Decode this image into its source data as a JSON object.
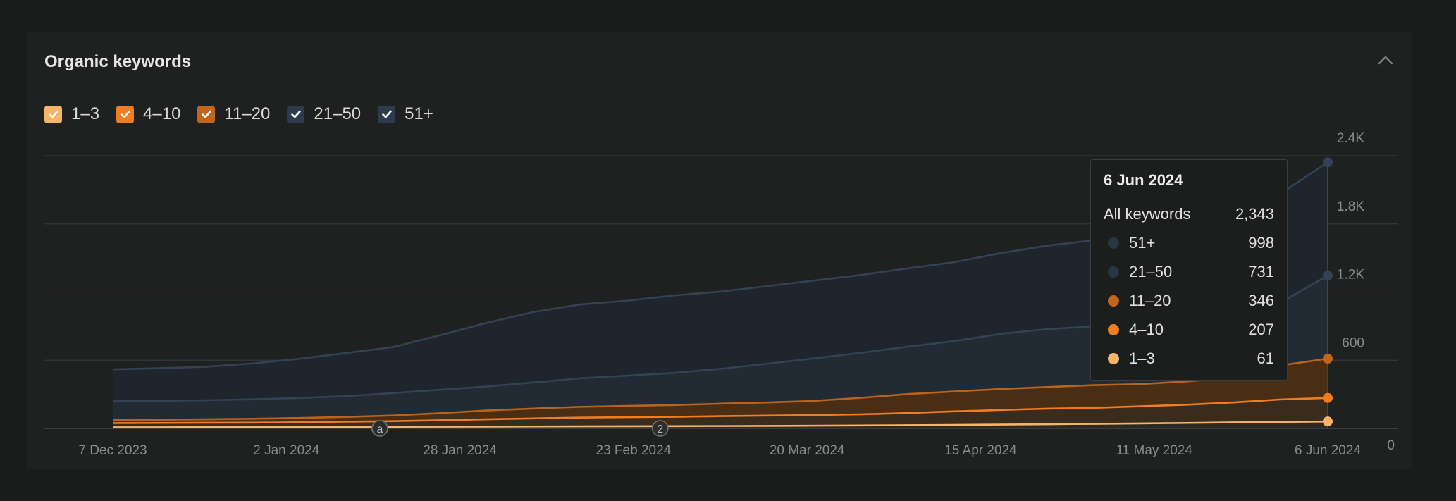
{
  "panel": {
    "title": "Organic keywords"
  },
  "legend": [
    {
      "label": "1–3",
      "color": "#f5b46a",
      "checked": true
    },
    {
      "label": "4–10",
      "color": "#f07d22",
      "checked": true
    },
    {
      "label": "11–20",
      "color": "#c2661c",
      "checked": true
    },
    {
      "label": "21–50",
      "color": "#2e3b4c",
      "checked": true
    },
    {
      "label": "51+",
      "color": "#2e3b4c",
      "checked": true
    }
  ],
  "tooltip": {
    "date": "6 Jun 2024",
    "total_label": "All keywords",
    "total_value": "2,343",
    "rows": [
      {
        "label": "51+",
        "value": "998",
        "color": "#2a3545"
      },
      {
        "label": "21–50",
        "value": "731",
        "color": "#2a3545"
      },
      {
        "label": "11–20",
        "value": "346",
        "color": "#c2661c"
      },
      {
        "label": "4–10",
        "value": "207",
        "color": "#f07d22"
      },
      {
        "label": "1–3",
        "value": "61",
        "color": "#f5b46a"
      }
    ]
  },
  "markers": [
    {
      "label": "a",
      "date": "2024-01-16"
    },
    {
      "label": "2",
      "date": "2024-02-27"
    }
  ],
  "chart_data": {
    "type": "area",
    "stacked": true,
    "x_ticks": [
      "7 Dec 2023",
      "2 Jan 2024",
      "28 Jan 2024",
      "23 Feb 2024",
      "20 Mar 2024",
      "15 Apr 2024",
      "11 May 2024",
      "6 Jun 2024"
    ],
    "y_ticks": [
      "0",
      "600",
      "1.2K",
      "1.8K",
      "2.4K"
    ],
    "ylim": [
      0,
      2400
    ],
    "grid": true,
    "x": [
      "7 Dec 2023",
      "14 Dec 2023",
      "21 Dec 2023",
      "28 Dec 2023",
      "4 Jan 2024",
      "11 Jan 2024",
      "18 Jan 2024",
      "25 Jan 2024",
      "1 Feb 2024",
      "8 Feb 2024",
      "15 Feb 2024",
      "22 Feb 2024",
      "29 Feb 2024",
      "7 Mar 2024",
      "14 Mar 2024",
      "21 Mar 2024",
      "28 Mar 2024",
      "4 Apr 2024",
      "11 Apr 2024",
      "18 Apr 2024",
      "25 Apr 2024",
      "2 May 2024",
      "9 May 2024",
      "16 May 2024",
      "23 May 2024",
      "30 May 2024",
      "6 Jun 2024"
    ],
    "series": [
      {
        "name": "1–3",
        "color": "#f5b46a",
        "values": [
          10,
          10,
          11,
          11,
          12,
          13,
          14,
          15,
          16,
          17,
          18,
          19,
          20,
          21,
          22,
          24,
          26,
          28,
          31,
          34,
          37,
          40,
          44,
          48,
          53,
          57,
          61
        ]
      },
      {
        "name": "4–10",
        "color": "#f07d22",
        "values": [
          37,
          38,
          39,
          40,
          42,
          46,
          50,
          57,
          64,
          71,
          77,
          80,
          82,
          87,
          91,
          93,
          98,
          107,
          119,
          128,
          137,
          141,
          151,
          161,
          176,
          198,
          207
        ]
      },
      {
        "name": "11–20",
        "color": "#c2661c",
        "values": [
          27,
          28,
          30,
          34,
          38,
          42,
          50,
          62,
          78,
          87,
          95,
          99,
          104,
          110,
          115,
          125,
          145,
          167,
          175,
          185,
          190,
          200,
          195,
          205,
          220,
          300,
          346
        ]
      },
      {
        "name": "21–50",
        "color": "#2e3b4c",
        "values": [
          165,
          166,
          168,
          171,
          176,
          183,
          197,
          206,
          211,
          229,
          251,
          266,
          283,
          306,
          341,
          374,
          396,
          416,
          443,
          486,
          510,
          518,
          532,
          542,
          551,
          555,
          731
        ]
      },
      {
        "name": "51+",
        "color": "#2e3b4c",
        "values": [
          281,
          288,
          295,
          316,
          345,
          380,
          405,
          480,
          560,
          620,
          650,
          660,
          681,
          680,
          683,
          685,
          685,
          690,
          695,
          710,
          735,
          758,
          792,
          835,
          895,
          960,
          998
        ]
      }
    ]
  }
}
